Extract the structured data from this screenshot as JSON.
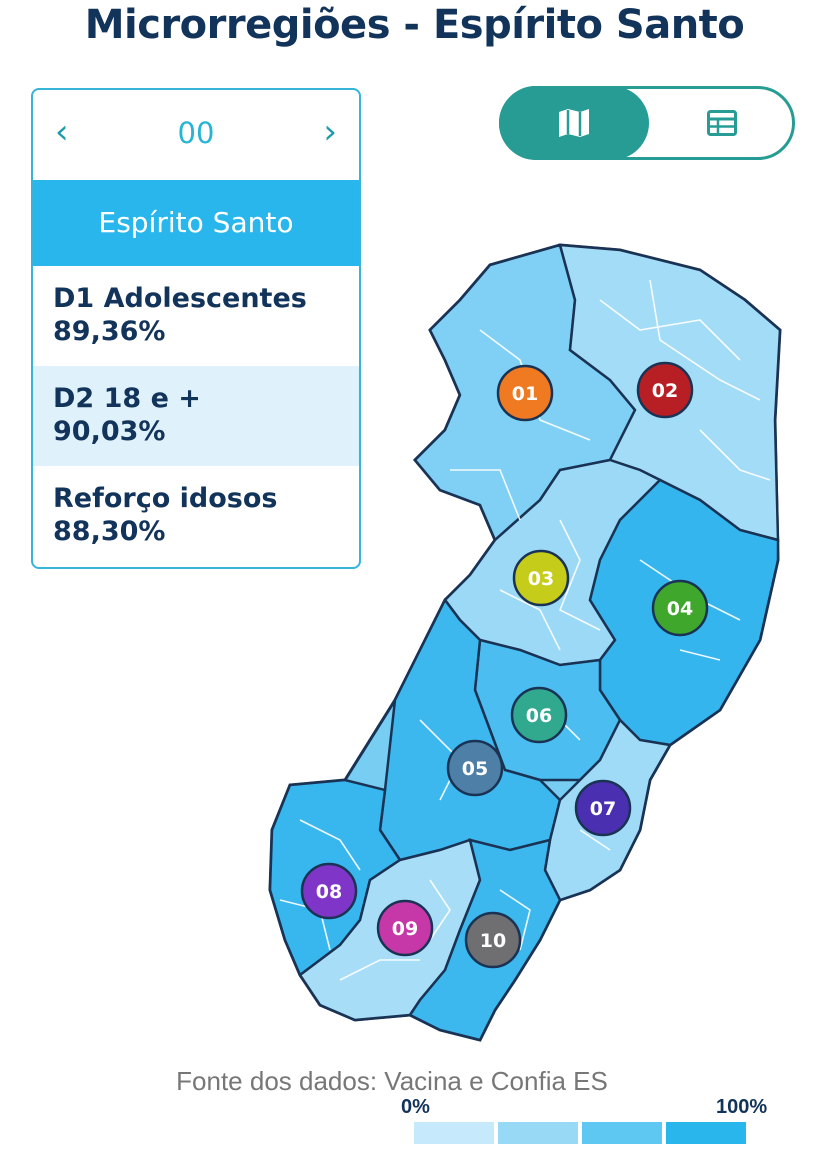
{
  "title": "Microrregiões - Espírito Santo",
  "selector": {
    "prev_icon": "chevron-left-icon",
    "prev_glyph": "‹",
    "code": "00",
    "next_icon": "chevron-right-icon",
    "next_glyph": "›"
  },
  "region": {
    "name": "Espírito Santo",
    "color": "#29b6ec"
  },
  "stats": [
    {
      "label": "D1 Adolescentes",
      "value": "89,36%"
    },
    {
      "label": "D2 18 e +",
      "value": "90,03%"
    },
    {
      "label": "Reforço idosos",
      "value": "88,30%"
    }
  ],
  "view_toggle": {
    "selected": "map",
    "options": [
      {
        "id": "map",
        "icon": "map-icon"
      },
      {
        "id": "table",
        "icon": "table-icon"
      }
    ],
    "color": "#279c94"
  },
  "microregions": [
    {
      "code": "01",
      "color": "#f07a22"
    },
    {
      "code": "02",
      "color": "#b81f24"
    },
    {
      "code": "03",
      "color": "#c6cc1a"
    },
    {
      "code": "04",
      "color": "#3fa82c"
    },
    {
      "code": "05",
      "color": "#4e7fa6"
    },
    {
      "code": "06",
      "color": "#31a98f"
    },
    {
      "code": "07",
      "color": "#4a2fb0"
    },
    {
      "code": "08",
      "color": "#7f36c8"
    },
    {
      "code": "09",
      "color": "#c637a8"
    },
    {
      "code": "10",
      "color": "#6f6f72"
    }
  ],
  "source_text": "Fonte dos dados: Vacina e Confia ES",
  "legend": {
    "min_label": "0%",
    "max_label": "100%",
    "colors": [
      "#c6eafb",
      "#98daf6",
      "#5fc8f2",
      "#29b6ec"
    ]
  },
  "colors": {
    "title": "#12335a",
    "map_light": "#a7ddf7",
    "map_medium": "#78cdf3",
    "map_dark": "#35b5ee",
    "border": "#1a3354"
  }
}
